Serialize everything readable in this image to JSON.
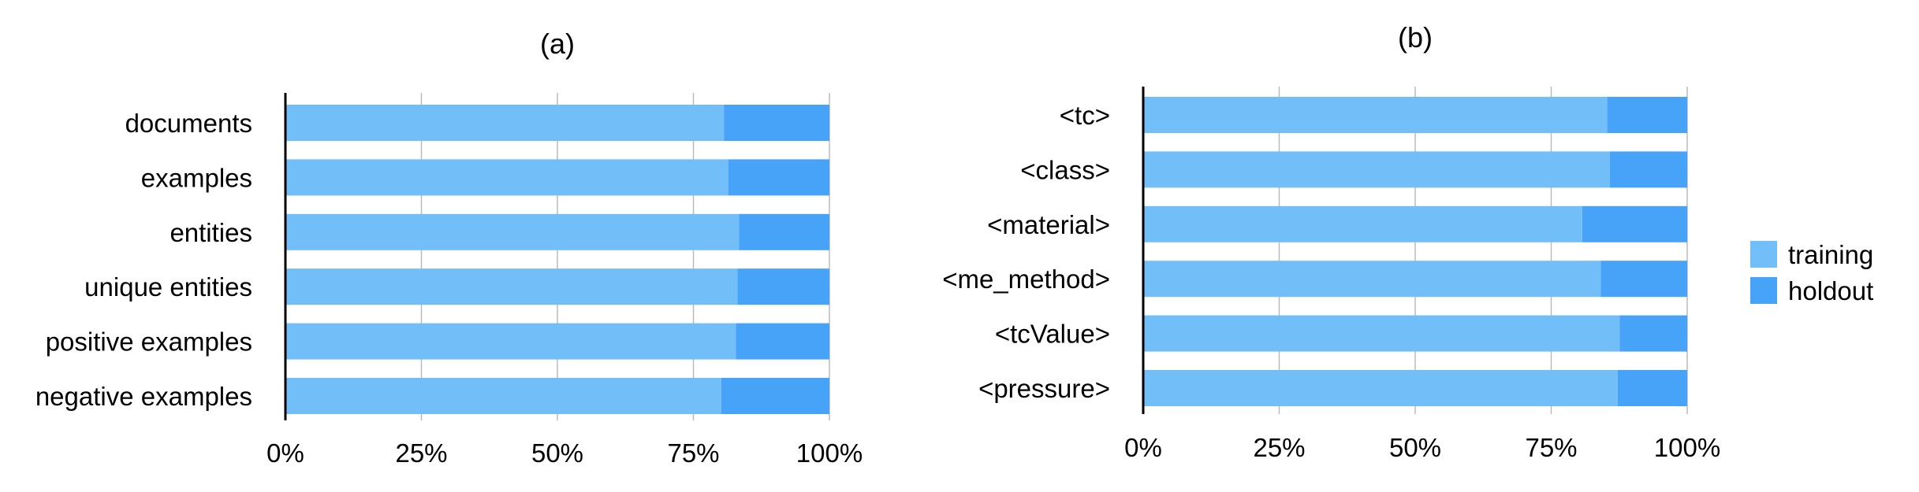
{
  "colors": {
    "training": "#71BEF8",
    "holdout": "#46A3F7",
    "grid": "#BBBBBB",
    "axis": "#000000"
  },
  "legend": {
    "placement": "right",
    "items": [
      {
        "label": "training",
        "color": "#71BEF8"
      },
      {
        "label": "holdout",
        "color": "#46A3F7"
      }
    ]
  },
  "chart_data": [
    {
      "type": "bar",
      "orientation": "horizontal",
      "stacked": "percent",
      "title": "(a)",
      "xlabel": "",
      "ylabel": "",
      "xlim": [
        0,
        100
      ],
      "xticks": [
        "0%",
        "25%",
        "50%",
        "75%",
        "100%"
      ],
      "grid": true,
      "categories": [
        "documents",
        "examples",
        "entities",
        "unique entities",
        "positive examples",
        "negative examples"
      ],
      "series": [
        {
          "name": "training",
          "values": [
            80.6,
            81.4,
            83.4,
            83.1,
            82.8,
            80.1
          ]
        },
        {
          "name": "holdout",
          "values": [
            19.4,
            18.6,
            16.6,
            16.9,
            17.2,
            19.9
          ]
        }
      ]
    },
    {
      "type": "bar",
      "orientation": "horizontal",
      "stacked": "percent",
      "title": "(b)",
      "xlabel": "",
      "ylabel": "",
      "xlim": [
        0,
        100
      ],
      "xticks": [
        "0%",
        "25%",
        "50%",
        "75%",
        "100%"
      ],
      "grid": true,
      "categories": [
        "<tc>",
        "<class>",
        "<material>",
        "<me_method>",
        "<tcValue>",
        "<pressure>"
      ],
      "series": [
        {
          "name": "training",
          "values": [
            85.3,
            85.8,
            80.7,
            84.1,
            87.6,
            87.2
          ]
        },
        {
          "name": "holdout",
          "values": [
            14.7,
            14.2,
            19.3,
            15.9,
            12.4,
            12.8
          ]
        }
      ]
    }
  ]
}
